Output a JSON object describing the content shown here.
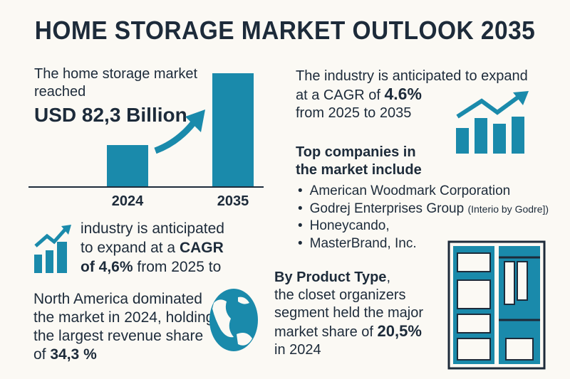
{
  "title": "HOME STORAGE MARKET OUTLOOK 2035",
  "market": {
    "line1": "The home storage market",
    "line2": "reached",
    "value": "USD 82,3 Billion"
  },
  "chart_data": {
    "type": "bar",
    "categories": [
      "2024",
      "2035"
    ],
    "color": "#1a8aab"
  },
  "cagr_top": {
    "line1": "The industry is anticipated to expand",
    "line2_pre": "at a CAGR of ",
    "line2_val": "4.6%",
    "line3": "from 2025 to 2035"
  },
  "companies": {
    "heading1": "Top companies in",
    "heading2": "the market include",
    "items": [
      "American Woodmark Corporation",
      "Godrej Enterprises Group",
      "Honeycando,",
      "MasterBrand, Inc."
    ],
    "godrej_note": "(Interio by Godre])"
  },
  "cagr_mid": {
    "line1": "industry is anticipated",
    "line2_pre": "to expand at a ",
    "line2_val": "CAGR",
    "line3_val": "of 4,6%",
    "line3_post": " from 2025 to"
  },
  "region": {
    "line1": "North America dominated",
    "line2": "the market in 2024, holding",
    "line3": "the largest revenue share",
    "line4_pre": "of ",
    "line4_val": "34,3 %"
  },
  "product": {
    "line1_bold": "By Product Type",
    "line1_post": ",",
    "line2": "the closet organizers",
    "line3": "segment held the major",
    "line4_pre": "market share of ",
    "line4_val": "20,5%",
    "line5": "in 2024"
  },
  "colors": {
    "accent": "#1a8aab",
    "text": "#1d2b3a",
    "background": "#fbf9f4"
  }
}
